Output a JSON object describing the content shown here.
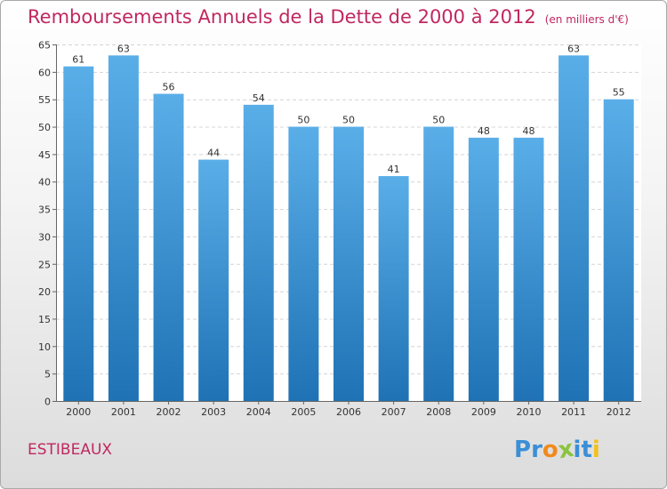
{
  "chart_data": {
    "type": "bar",
    "title": "Remboursements Annuels de la Dette de 2000 à 2012",
    "subtitle": "(en milliers d'€)",
    "categories": [
      "2000",
      "2001",
      "2002",
      "2003",
      "2004",
      "2005",
      "2006",
      "2007",
      "2008",
      "2009",
      "2010",
      "2011",
      "2012"
    ],
    "values": [
      61,
      63,
      56,
      44,
      54,
      50,
      50,
      41,
      50,
      48,
      48,
      63,
      55
    ],
    "ylim": [
      0,
      65
    ],
    "yticks": [
      0,
      5,
      10,
      15,
      20,
      25,
      30,
      35,
      40,
      45,
      50,
      55,
      60,
      65
    ],
    "xlabel": "",
    "ylabel": "",
    "grid": true
  },
  "footer": {
    "commune": "ESTIBEAUX",
    "logo_letters": [
      "P",
      "r",
      "o",
      "x",
      "i",
      "t",
      "i"
    ]
  },
  "colors": {
    "title": "#c0285f",
    "bar_top": "#5aaee8",
    "bar_bottom": "#1f72b4",
    "logo": [
      "#3b8fd6",
      "#3b8fd6",
      "#f08a1c",
      "#8ac43f",
      "#3b8fd6",
      "#3b8fd6",
      "#f0c21c"
    ]
  }
}
